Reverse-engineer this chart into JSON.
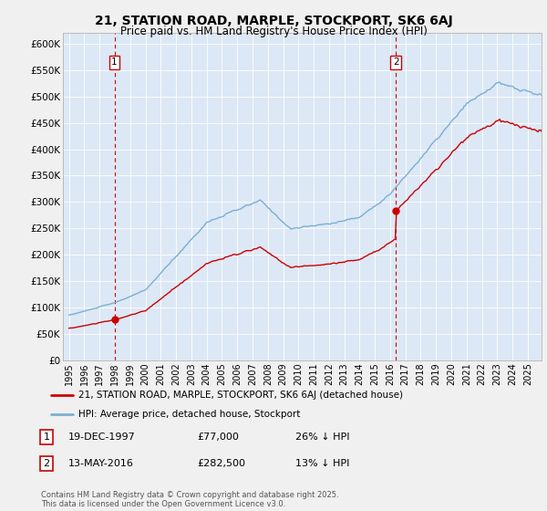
{
  "title": "21, STATION ROAD, MARPLE, STOCKPORT, SK6 6AJ",
  "subtitle": "Price paid vs. HM Land Registry's House Price Index (HPI)",
  "ylim": [
    0,
    620000
  ],
  "yticks": [
    0,
    50000,
    100000,
    150000,
    200000,
    250000,
    300000,
    350000,
    400000,
    450000,
    500000,
    550000,
    600000
  ],
  "ytick_labels": [
    "£0",
    "£50K",
    "£100K",
    "£150K",
    "£200K",
    "£250K",
    "£300K",
    "£350K",
    "£400K",
    "£450K",
    "£500K",
    "£550K",
    "£600K"
  ],
  "xlim": [
    1994.6,
    2025.9
  ],
  "xtick_start": 1995,
  "xtick_end": 2025,
  "transaction1_date": 1997.97,
  "transaction1_price": 77000,
  "transaction2_date": 2016.37,
  "transaction2_price": 282500,
  "legend_line1": "21, STATION ROAD, MARPLE, STOCKPORT, SK6 6AJ (detached house)",
  "legend_line2": "HPI: Average price, detached house, Stockport",
  "annotation1_date": "19-DEC-1997",
  "annotation1_price": "£77,000",
  "annotation1_hpi": "26% ↓ HPI",
  "annotation2_date": "13-MAY-2016",
  "annotation2_price": "£282,500",
  "annotation2_hpi": "13% ↓ HPI",
  "footer": "Contains HM Land Registry data © Crown copyright and database right 2025.\nThis data is licensed under the Open Government Licence v3.0.",
  "line_color_property": "#cc0000",
  "line_color_hpi": "#7aafd4",
  "dashed_color": "#cc0000",
  "background_color": "#f0f0f0",
  "plot_bg_color": "#dce8f5"
}
